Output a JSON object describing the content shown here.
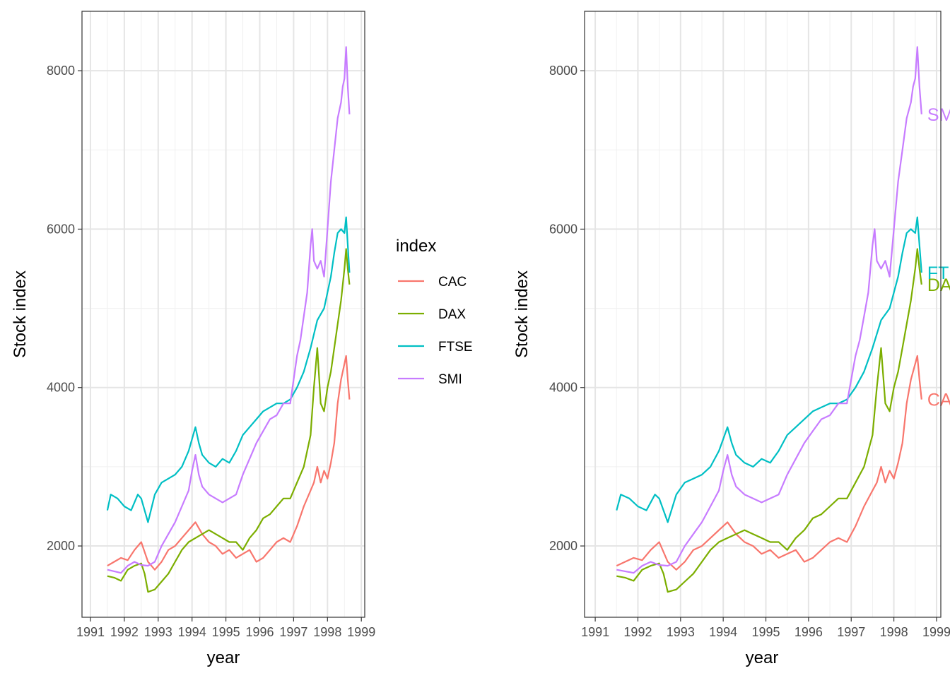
{
  "chart_data": [
    {
      "type": "line",
      "panel": "left",
      "xlabel": "year",
      "ylabel": "Stock index",
      "xlim": [
        1990.75,
        1999.1
      ],
      "ylim": [
        1100,
        8750
      ],
      "x_ticks": [
        1991,
        1992,
        1993,
        1994,
        1995,
        1996,
        1997,
        1998,
        1999
      ],
      "x_tick_labels": [
        "1991",
        "1992",
        "1993",
        "1994",
        "1995",
        "1996",
        "1997",
        "1998",
        "1999"
      ],
      "y_ticks": [
        2000,
        4000,
        6000,
        8000
      ],
      "y_tick_labels": [
        "2000",
        "4000",
        "6000",
        "8000"
      ],
      "grid": true,
      "legend": {
        "title": "index",
        "position": "right",
        "entries": [
          "CAC",
          "DAX",
          "FTSE",
          "SMI"
        ]
      },
      "series": [
        {
          "name": "CAC",
          "color": "#F8766D",
          "x": [
            1991.5,
            1991.7,
            1991.9,
            1992.1,
            1992.3,
            1992.5,
            1992.7,
            1992.9,
            1993.1,
            1993.3,
            1993.5,
            1993.7,
            1993.9,
            1994.1,
            1994.3,
            1994.5,
            1994.7,
            1994.9,
            1995.1,
            1995.3,
            1995.5,
            1995.7,
            1995.9,
            1996.1,
            1996.3,
            1996.5,
            1996.7,
            1996.9,
            1997.1,
            1997.3,
            1997.5,
            1997.6,
            1997.7,
            1997.8,
            1997.9,
            1998.0,
            1998.1,
            1998.2,
            1998.3,
            1998.4,
            1998.5,
            1998.55,
            1998.6,
            1998.65
          ],
          "y": [
            1750,
            1800,
            1850,
            1820,
            1950,
            2050,
            1800,
            1700,
            1800,
            1950,
            2000,
            2100,
            2200,
            2300,
            2150,
            2050,
            2000,
            1900,
            1950,
            1850,
            1900,
            1950,
            1800,
            1850,
            1950,
            2050,
            2100,
            2050,
            2250,
            2500,
            2700,
            2800,
            3000,
            2800,
            2950,
            2850,
            3050,
            3300,
            3800,
            4100,
            4300,
            4400,
            4100,
            3850
          ]
        },
        {
          "name": "DAX",
          "color": "#7CAE00",
          "x": [
            1991.5,
            1991.7,
            1991.9,
            1992.1,
            1992.3,
            1992.5,
            1992.6,
            1992.7,
            1992.9,
            1993.1,
            1993.3,
            1993.5,
            1993.7,
            1993.9,
            1994.1,
            1994.3,
            1994.5,
            1994.7,
            1994.9,
            1995.1,
            1995.3,
            1995.5,
            1995.7,
            1995.9,
            1996.1,
            1996.3,
            1996.5,
            1996.7,
            1996.9,
            1997.1,
            1997.3,
            1997.5,
            1997.55,
            1997.6,
            1997.7,
            1997.8,
            1997.9,
            1998.0,
            1998.1,
            1998.2,
            1998.3,
            1998.4,
            1998.5,
            1998.55,
            1998.6,
            1998.65
          ],
          "y": [
            1620,
            1600,
            1560,
            1700,
            1750,
            1780,
            1650,
            1420,
            1450,
            1550,
            1650,
            1800,
            1950,
            2050,
            2100,
            2150,
            2200,
            2150,
            2100,
            2050,
            2050,
            1950,
            2100,
            2200,
            2350,
            2400,
            2500,
            2600,
            2600,
            2800,
            3000,
            3400,
            3700,
            4000,
            4500,
            3800,
            3700,
            4000,
            4200,
            4500,
            4800,
            5100,
            5500,
            5750,
            5500,
            5300
          ]
        },
        {
          "name": "FTSE",
          "color": "#00BFC4",
          "x": [
            1991.5,
            1991.6,
            1991.8,
            1992.0,
            1992.2,
            1992.4,
            1992.5,
            1992.7,
            1992.9,
            1993.1,
            1993.3,
            1993.5,
            1993.7,
            1993.9,
            1994.0,
            1994.1,
            1994.2,
            1994.3,
            1994.5,
            1994.7,
            1994.9,
            1995.1,
            1995.3,
            1995.5,
            1995.7,
            1995.9,
            1996.1,
            1996.3,
            1996.5,
            1996.7,
            1996.9,
            1997.1,
            1997.3,
            1997.5,
            1997.7,
            1997.9,
            1998.0,
            1998.1,
            1998.2,
            1998.3,
            1998.4,
            1998.5,
            1998.55,
            1998.6,
            1998.65
          ],
          "y": [
            2450,
            2650,
            2600,
            2500,
            2450,
            2650,
            2600,
            2300,
            2650,
            2800,
            2850,
            2900,
            3000,
            3200,
            3350,
            3500,
            3300,
            3150,
            3050,
            3000,
            3100,
            3050,
            3200,
            3400,
            3500,
            3600,
            3700,
            3750,
            3800,
            3800,
            3850,
            4000,
            4200,
            4500,
            4850,
            5000,
            5200,
            5400,
            5700,
            5950,
            6000,
            5950,
            6150,
            5800,
            5450
          ]
        },
        {
          "name": "SMI",
          "color": "#C77CFF",
          "x": [
            1991.5,
            1991.7,
            1991.9,
            1992.1,
            1992.3,
            1992.5,
            1992.7,
            1992.9,
            1993.1,
            1993.3,
            1993.5,
            1993.7,
            1993.9,
            1994.0,
            1994.1,
            1994.2,
            1994.3,
            1994.5,
            1994.7,
            1994.9,
            1995.1,
            1995.3,
            1995.5,
            1995.7,
            1995.9,
            1996.1,
            1996.3,
            1996.5,
            1996.7,
            1996.9,
            1997.0,
            1997.1,
            1997.2,
            1997.3,
            1997.4,
            1997.5,
            1997.55,
            1997.6,
            1997.7,
            1997.8,
            1997.9,
            1998.0,
            1998.1,
            1998.2,
            1998.3,
            1998.4,
            1998.45,
            1998.5,
            1998.55,
            1998.6,
            1998.65
          ],
          "y": [
            1700,
            1680,
            1660,
            1750,
            1800,
            1760,
            1750,
            1800,
            2000,
            2150,
            2300,
            2500,
            2700,
            2950,
            3150,
            2900,
            2750,
            2650,
            2600,
            2550,
            2600,
            2650,
            2900,
            3100,
            3300,
            3450,
            3600,
            3650,
            3800,
            3800,
            4100,
            4400,
            4600,
            4900,
            5200,
            5800,
            6000,
            5600,
            5500,
            5600,
            5400,
            6000,
            6600,
            7000,
            7400,
            7600,
            7800,
            7900,
            8300,
            7800,
            7450
          ]
        }
      ]
    },
    {
      "type": "line",
      "panel": "right",
      "xlabel": "year",
      "ylabel": "Stock index",
      "xlim": [
        1990.75,
        1999.1
      ],
      "ylim": [
        1100,
        8750
      ],
      "x_ticks": [
        1991,
        1992,
        1993,
        1994,
        1995,
        1996,
        1997,
        1998,
        1999
      ],
      "x_tick_labels": [
        "1991",
        "1992",
        "1993",
        "1994",
        "1995",
        "1996",
        "1997",
        "1998",
        "1999"
      ],
      "y_ticks": [
        2000,
        4000,
        6000,
        8000
      ],
      "y_tick_labels": [
        "2000",
        "4000",
        "6000",
        "8000"
      ],
      "grid": true,
      "legend": null,
      "direct_labels": [
        {
          "series": "SMI",
          "text": "SM"
        },
        {
          "series": "DAX",
          "text": "DA"
        },
        {
          "series": "FTSE",
          "text": "FT"
        },
        {
          "series": "CAC",
          "text": "CA"
        }
      ],
      "series_same_as": "left"
    }
  ]
}
